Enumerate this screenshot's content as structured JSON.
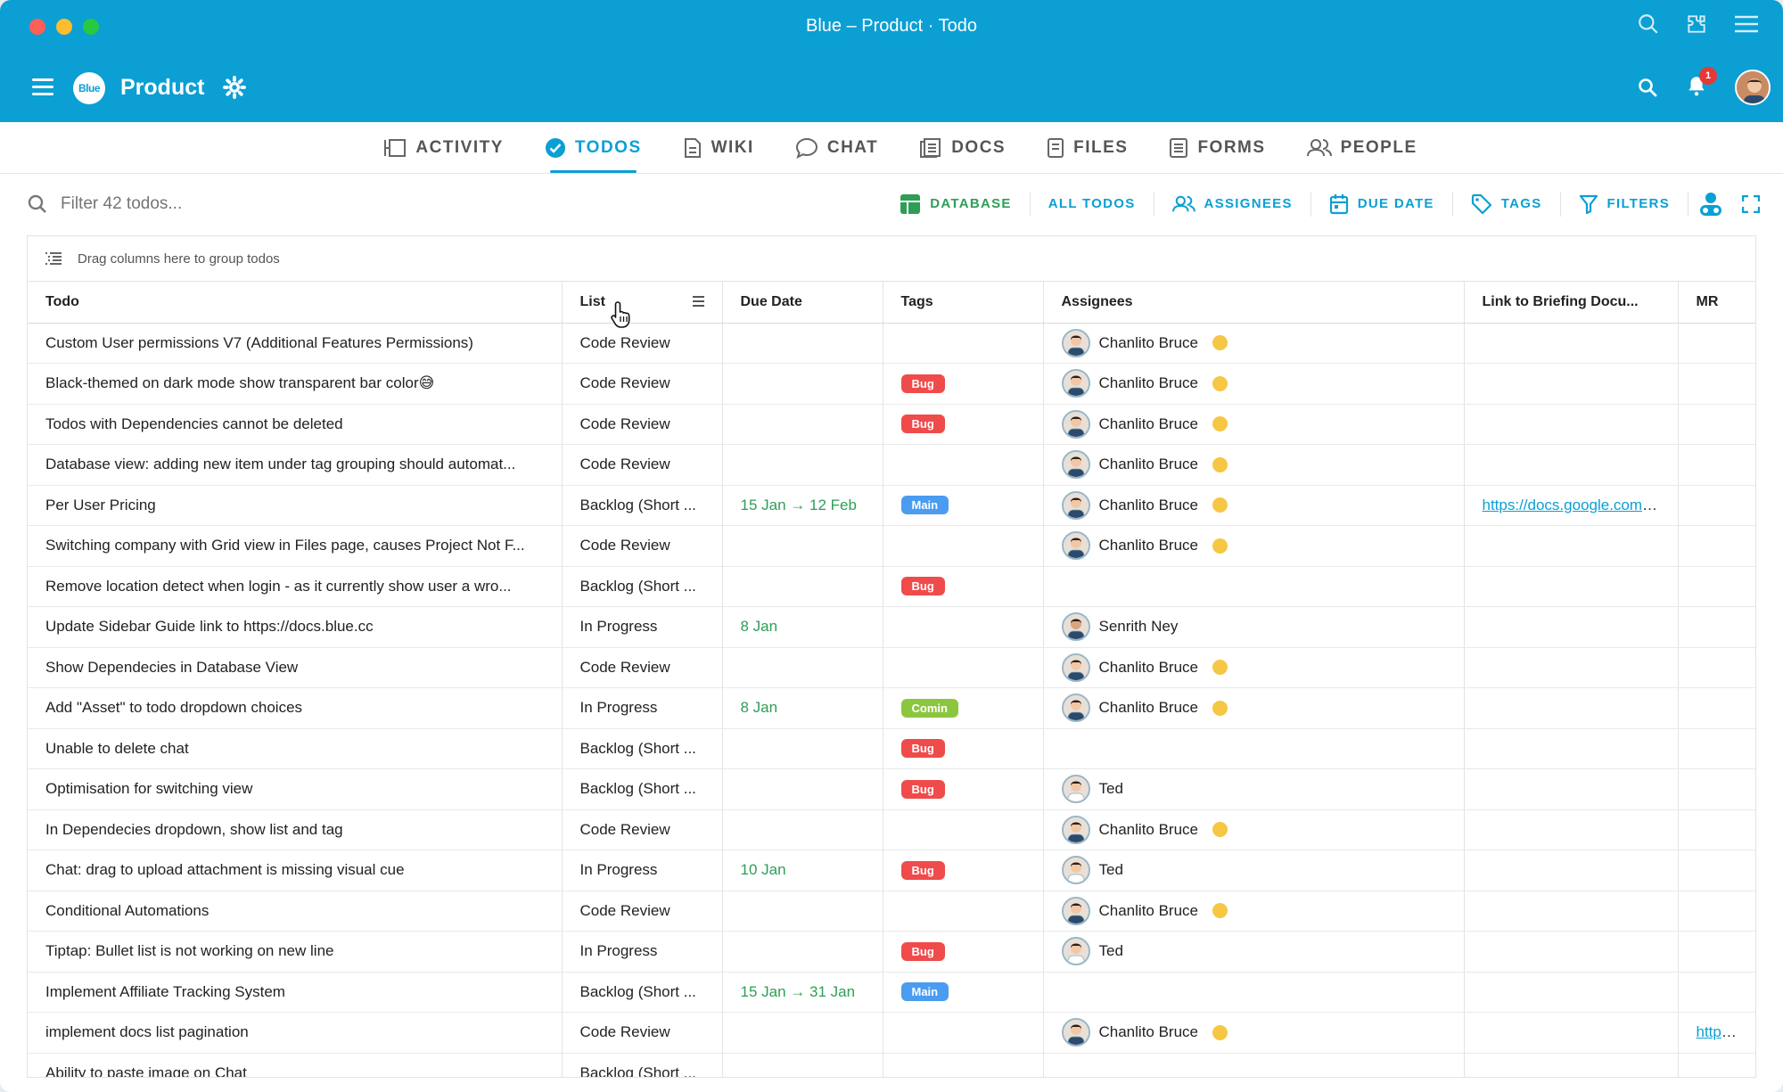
{
  "window": {
    "title": "Blue – Product · Todo"
  },
  "app": {
    "logo_text": "Blue",
    "project": "Product",
    "notifications": "1"
  },
  "tabs": [
    {
      "label": "ACTIVITY",
      "icon": "activity-icon"
    },
    {
      "label": "TODOS",
      "icon": "check-circle-icon"
    },
    {
      "label": "WIKI",
      "icon": "document-icon"
    },
    {
      "label": "CHAT",
      "icon": "chat-bubble-icon"
    },
    {
      "label": "DOCS",
      "icon": "docs-icon"
    },
    {
      "label": "FILES",
      "icon": "file-icon"
    },
    {
      "label": "FORMS",
      "icon": "form-icon"
    },
    {
      "label": "PEOPLE",
      "icon": "people-icon"
    }
  ],
  "search": {
    "placeholder": "Filter 42 todos..."
  },
  "toolbar": {
    "database": "DATABASE",
    "all_todos": "ALL TODOS",
    "assignees": "ASSIGNEES",
    "due_date": "DUE DATE",
    "tags": "TAGS",
    "filters": "FILTERS"
  },
  "group_hint": "Drag columns here to group todos",
  "columns": [
    "Todo",
    "List",
    "Due Date",
    "Tags",
    "Assignees",
    "Link to Briefing Docu...",
    "MR"
  ],
  "colors": {
    "accent": "#0b9fd4",
    "bug": "#f04b4b",
    "main": "#4a9cf0",
    "comin": "#8cc63f",
    "date": "#2e9e56"
  },
  "rows": [
    {
      "todo": "Custom User permissions V7 (Additional Features Permissions)",
      "list": "Code Review",
      "due": "",
      "tag": "",
      "assignee": "Chanlito Bruce",
      "link": "",
      "mr": ""
    },
    {
      "todo": "Black-themed on dark mode show transparent bar color😅",
      "list": "Code Review",
      "due": "",
      "tag": "Bug",
      "assignee": "Chanlito Bruce",
      "link": "",
      "mr": ""
    },
    {
      "todo": "Todos with Dependencies cannot be deleted",
      "list": "Code Review",
      "due": "",
      "tag": "Bug",
      "assignee": "Chanlito Bruce",
      "link": "",
      "mr": ""
    },
    {
      "todo": "Database view: adding new item under tag grouping should automat...",
      "list": "Code Review",
      "due": "",
      "tag": "",
      "assignee": "Chanlito Bruce",
      "link": "",
      "mr": ""
    },
    {
      "todo": "Per User Pricing",
      "list": "Backlog (Short ...",
      "due": "15 Jan → 12 Feb",
      "tag": "Main",
      "assignee": "Chanlito Bruce",
      "link": "https://docs.google.com/do",
      "mr": ""
    },
    {
      "todo": "Switching company with Grid view in Files page, causes Project Not F...",
      "list": "Code Review",
      "due": "",
      "tag": "",
      "assignee": "Chanlito Bruce",
      "link": "",
      "mr": ""
    },
    {
      "todo": "Remove location detect when login - as it currently show user a wro...",
      "list": "Backlog (Short ...",
      "due": "",
      "tag": "Bug",
      "assignee": "",
      "link": "",
      "mr": ""
    },
    {
      "todo": "Update Sidebar Guide link to https://docs.blue.cc",
      "list": "In Progress",
      "due": "8 Jan",
      "tag": "",
      "assignee": "Senrith Ney",
      "link": "",
      "mr": ""
    },
    {
      "todo": "Show Dependecies in Database View",
      "list": "Code Review",
      "due": "",
      "tag": "",
      "assignee": "Chanlito Bruce",
      "link": "",
      "mr": ""
    },
    {
      "todo": "Add \"Asset\" to todo dropdown choices",
      "list": "In Progress",
      "due": "8 Jan",
      "tag": "Comin",
      "assignee": "Chanlito Bruce",
      "link": "",
      "mr": ""
    },
    {
      "todo": "Unable to delete chat",
      "list": "Backlog (Short ...",
      "due": "",
      "tag": "Bug",
      "assignee": "",
      "link": "",
      "mr": ""
    },
    {
      "todo": "Optimisation for switching view",
      "list": "Backlog (Short ...",
      "due": "",
      "tag": "Bug",
      "assignee": "Ted",
      "link": "",
      "mr": ""
    },
    {
      "todo": "In Dependecies dropdown, show list and tag",
      "list": "Code Review",
      "due": "",
      "tag": "",
      "assignee": "Chanlito Bruce",
      "link": "",
      "mr": ""
    },
    {
      "todo": "Chat: drag to upload attachment is missing visual cue",
      "list": "In Progress",
      "due": "10 Jan",
      "tag": "Bug",
      "assignee": "Ted",
      "link": "",
      "mr": ""
    },
    {
      "todo": "Conditional Automations",
      "list": "Code Review",
      "due": "",
      "tag": "",
      "assignee": "Chanlito Bruce",
      "link": "",
      "mr": ""
    },
    {
      "todo": "Tiptap: Bullet list is not working on new line",
      "list": "In Progress",
      "due": "",
      "tag": "Bug",
      "assignee": "Ted",
      "link": "",
      "mr": ""
    },
    {
      "todo": "Implement Affiliate Tracking System",
      "list": "Backlog (Short ...",
      "due": "15 Jan → 31 Jan",
      "tag": "Main",
      "assignee": "",
      "link": "",
      "mr": ""
    },
    {
      "todo": "implement docs list pagination",
      "list": "Code Review",
      "due": "",
      "tag": "",
      "assignee": "Chanlito Bruce",
      "link": "",
      "mr": "https://g"
    },
    {
      "todo": "Ability to paste image on Chat",
      "list": "Backlog (Short ...",
      "due": "",
      "tag": "",
      "assignee": "",
      "link": "",
      "mr": ""
    }
  ]
}
